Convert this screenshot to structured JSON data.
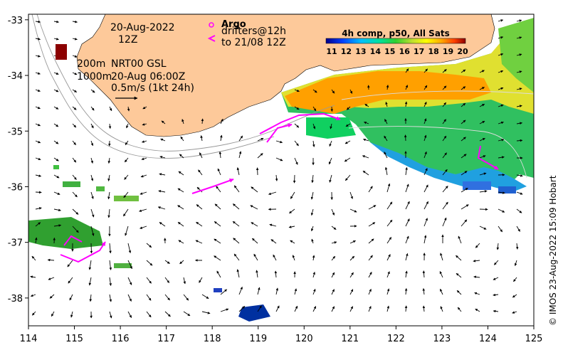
{
  "map": {
    "date_line1": "20-Aug-2022",
    "date_line2": "12Z",
    "iso_200": "200m",
    "iso_1000": "1000m",
    "model": "NRT00 GSL",
    "model_time": "20-Aug 06:00Z",
    "scale_label": "0.5m/s (1kt 24h)",
    "argo_label": "Argo",
    "drifters_line1": "drifters@12h",
    "drifters_line2": "to 21/08 12Z",
    "colorbar_title": "4h comp, p50, All Sats",
    "colorbar_ticks": [
      "11",
      "12",
      "13",
      "14",
      "15",
      "16",
      "17",
      "18",
      "19",
      "20"
    ],
    "credit": "© IMOS 23-Aug-2022 15:09 Hobart",
    "x_ticks": [
      "114",
      "115",
      "116",
      "117",
      "118",
      "119",
      "120",
      "121",
      "122",
      "123",
      "124",
      "125"
    ],
    "y_ticks": [
      "-33",
      "-34",
      "-35",
      "-36",
      "-37",
      "-38"
    ],
    "lon_range": [
      114,
      125
    ],
    "lat_range": [
      -38.5,
      -32.9
    ],
    "colors": {
      "land": "#fdc99a",
      "drifter": "#ff00ff",
      "coast_stripe": "#8b0000"
    }
  }
}
